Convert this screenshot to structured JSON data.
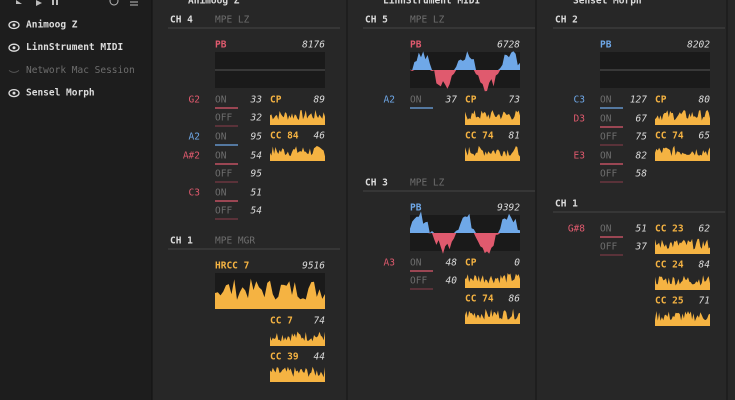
{
  "labels": {
    "on": "ON",
    "off": "OFF"
  },
  "sidebar": {
    "devices": [
      {
        "name": "Animoog Z",
        "active": true
      },
      {
        "name": "LinnStrument MIDI",
        "active": true
      },
      {
        "name": "Network Mac Session",
        "active": false
      },
      {
        "name": "Sensel Morph",
        "active": true
      }
    ]
  },
  "columns": [
    {
      "title": "Animoog Z",
      "channels": [
        {
          "label": "CH 4",
          "mode": "MPE LZ",
          "wide": [
            {
              "label": "PB",
              "value": 8176,
              "color": "#e05a6e",
              "shape": "flat"
            }
          ],
          "notes": [
            {
              "note": "G2",
              "color": "#e05a6e",
              "on": 33,
              "off": 32
            },
            {
              "note": "A2",
              "color": "#6fa8e8",
              "on": 95
            },
            {
              "note": "A#2",
              "color": "#e05a6e",
              "on": 54,
              "off": 95
            },
            {
              "note": "C3",
              "color": "#e05a6e",
              "on": 51,
              "off": 54
            }
          ],
          "graphs": [
            {
              "label": "CP",
              "value": 89
            },
            {
              "label": "CC 84",
              "value": 46
            }
          ]
        },
        {
          "label": "CH 1",
          "mode": "MPE MGR",
          "wide": [
            {
              "label": "HRCC 7",
              "value": 9516,
              "color": "#f5b342",
              "shape": "area"
            }
          ],
          "notes": [],
          "graphs": [
            {
              "label": "CC 7",
              "value": 74
            },
            {
              "label": "CC 39",
              "value": 44
            }
          ]
        }
      ]
    },
    {
      "title": "LinnStrument MIDI",
      "channels": [
        {
          "label": "CH 5",
          "mode": "MPE LZ",
          "wide": [
            {
              "label": "PB",
              "value": 6728,
              "color": "#e05a6e",
              "shape": "bipolar"
            }
          ],
          "notes": [
            {
              "note": "A2",
              "color": "#6fa8e8",
              "on": 37
            }
          ],
          "graphs": [
            {
              "label": "CP",
              "value": 73
            },
            {
              "label": "CC 74",
              "value": 81
            }
          ]
        },
        {
          "label": "CH 3",
          "mode": "MPE LZ",
          "wide": [
            {
              "label": "PB",
              "value": 9392,
              "color": "#6fa8e8",
              "shape": "bipolar"
            }
          ],
          "notes": [
            {
              "note": "A3",
              "color": "#e05a6e",
              "on": 48,
              "off": 40
            }
          ],
          "graphs": [
            {
              "label": "CP",
              "value": 0
            },
            {
              "label": "CC 74",
              "value": 86
            }
          ]
        }
      ]
    },
    {
      "title": "Sensel Morph",
      "channels": [
        {
          "label": "CH 2",
          "wide": [
            {
              "label": "PB",
              "value": 8202,
              "color": "#6fa8e8",
              "shape": "flat"
            }
          ],
          "notes": [
            {
              "note": "C3",
              "color": "#6fa8e8",
              "on": 127
            },
            {
              "note": "D3",
              "color": "#e05a6e",
              "on": 67,
              "off": 75
            },
            {
              "note": "E3",
              "color": "#e05a6e",
              "on": 82,
              "off": 58
            }
          ],
          "graphs": [
            {
              "label": "CP",
              "value": 80
            },
            {
              "label": "CC 74",
              "value": 65
            }
          ]
        },
        {
          "label": "CH 1",
          "wide": [],
          "notes": [
            {
              "note": "G#8",
              "color": "#e05a6e",
              "on": 51,
              "off": 37
            }
          ],
          "graphs": [
            {
              "label": "CC 23",
              "value": 62
            },
            {
              "label": "CC 24",
              "value": 84
            },
            {
              "label": "CC 25",
              "value": 71
            }
          ]
        }
      ]
    }
  ]
}
